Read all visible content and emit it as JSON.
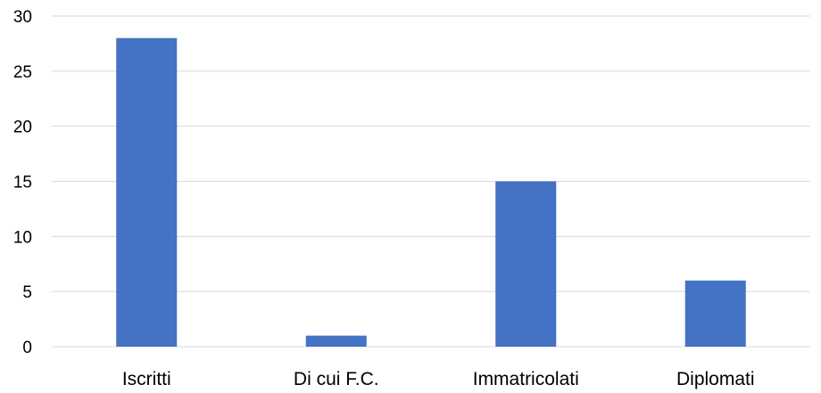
{
  "chart_data": {
    "type": "bar",
    "categories": [
      "Iscritti",
      "Di cui F.C.",
      "Immatricolati",
      "Diplomati"
    ],
    "values": [
      28,
      1,
      15,
      6
    ],
    "title": "",
    "xlabel": "",
    "ylabel": "",
    "ylim": [
      0,
      30
    ],
    "yticks": [
      0,
      5,
      10,
      15,
      20,
      25,
      30
    ],
    "grid": true,
    "legend": "none",
    "bar_color": "#4472C4",
    "grid_color": "#D9D9D9"
  }
}
